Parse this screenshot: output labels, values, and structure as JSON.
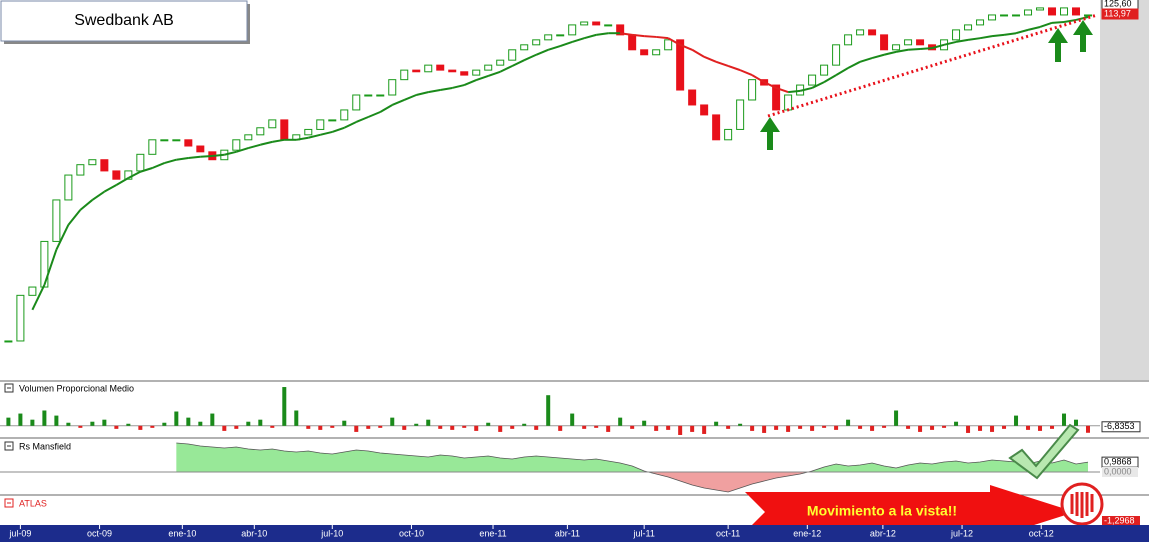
{
  "chart_data": [
    {
      "type": "candlestick",
      "title": "Swedbank AB",
      "xlim": [
        -0.7,
        91
      ],
      "ylim": [
        40,
        128
      ],
      "xticks": [
        {
          "value": 1,
          "label": "jul-09"
        },
        {
          "value": 7.6,
          "label": "oct-09"
        },
        {
          "value": 14.5,
          "label": "ene-10"
        },
        {
          "value": 20.5,
          "label": "abr-10"
        },
        {
          "value": 27,
          "label": "jul-10"
        },
        {
          "value": 33.6,
          "label": "oct-10"
        },
        {
          "value": 40.4,
          "label": "ene-11"
        },
        {
          "value": 46.6,
          "label": "abr-11"
        },
        {
          "value": 53,
          "label": "jul-11"
        },
        {
          "value": 60,
          "label": "oct-11"
        },
        {
          "value": 66.6,
          "label": "ene-12"
        },
        {
          "value": 72.9,
          "label": "abr-12"
        },
        {
          "value": 79.5,
          "label": "jul-12"
        },
        {
          "value": 86.1,
          "label": "oct-12"
        }
      ],
      "values": [
        47,
        58,
        60,
        71,
        81,
        87,
        89.5,
        90.7,
        88,
        86,
        88,
        92,
        95.5,
        95.5,
        95.5,
        94,
        92.6,
        90.7,
        93,
        95.5,
        96.7,
        98.4,
        100.3,
        95.5,
        96.7,
        98,
        100.3,
        100.3,
        102.7,
        106.3,
        106.3,
        106.3,
        110,
        112.3,
        111.9,
        113.5,
        112.3,
        111.9,
        111.1,
        112.3,
        113.5,
        114.7,
        117.2,
        118.4,
        119.6,
        120.8,
        120.8,
        123.2,
        123.9,
        123.2,
        123.2,
        120.8,
        117.2,
        116,
        117.2,
        119.6,
        107.5,
        103.9,
        101.5,
        95.5,
        98,
        105.1,
        110,
        108.7,
        102.7,
        106.3,
        108.7,
        111.1,
        113.5,
        118.4,
        120.8,
        122,
        120.8,
        117.2,
        118.4,
        119.6,
        118.4,
        117.2,
        119.6,
        122,
        123.2,
        124.4,
        125.6,
        125.6,
        125.6,
        126.8,
        127.3,
        125.6,
        127.3,
        125.6,
        125.6
      ],
      "up_color": "#1a9a1a",
      "down_color": "#e8101a",
      "ma": {
        "color": "#1a8a1a",
        "declining_color": "#e02020",
        "values": [
          null,
          null,
          54.5,
          60.5,
          69,
          75,
          78.6,
          81,
          83,
          84.6,
          86.3,
          87.8,
          88.7,
          89.9,
          90.7,
          91.1,
          91.4,
          91.6,
          91.9,
          92.6,
          93.5,
          94.3,
          95,
          95.5,
          95.5,
          96,
          96.7,
          97.4,
          98.4,
          99.8,
          101,
          102.2,
          103.9,
          105.1,
          106.3,
          107,
          107.5,
          108,
          108.7,
          109.9,
          110.9,
          111.9,
          113.3,
          114.7,
          116,
          117.2,
          118.1,
          119.1,
          120,
          120.8,
          121.2,
          121.2,
          120.8,
          120.5,
          120.3,
          120,
          118.4,
          117.2,
          115.5,
          114.3,
          113.3,
          112.3,
          111.1,
          109.4,
          108,
          107,
          107.3,
          108,
          109.4,
          111.1,
          112.8,
          114.3,
          115.2,
          116,
          116.7,
          117.2,
          117.4,
          117.6,
          118.4,
          119.1,
          119.6,
          120,
          120.5,
          120.8,
          121.2,
          122,
          122.7,
          123.7,
          123.9,
          124.4,
          125.1
        ]
      },
      "last_labels": [
        {
          "value": 125.6,
          "label": "125,60"
        },
        {
          "value": 113.97,
          "label": "113,97"
        }
      ]
    },
    {
      "type": "bar",
      "title": "Volumen Proporcional Medio",
      "ylim": [
        -10,
        40
      ],
      "values": [
        8,
        12,
        6,
        15,
        10,
        3,
        -2,
        4,
        6,
        -3,
        2,
        -4,
        -2,
        3,
        14,
        8,
        4,
        12,
        -5,
        -3,
        4,
        6,
        -2,
        38,
        15,
        -3,
        -4,
        -2,
        5,
        -6,
        -3,
        -2,
        8,
        -4,
        2,
        6,
        -3,
        -4,
        -2,
        -5,
        3,
        -6,
        -3,
        2,
        -4,
        30,
        -5,
        12,
        -3,
        -2,
        -6,
        8,
        -3,
        5,
        -5,
        -4,
        -9,
        -6,
        -8,
        4,
        -3,
        2,
        -5,
        -7,
        -4,
        -6,
        -3,
        -5,
        -2,
        -4,
        6,
        -3,
        -5,
        -2,
        15,
        -3,
        -6,
        -4,
        -2,
        4,
        -7,
        -5,
        -6,
        -3,
        10,
        -4,
        -5,
        -3,
        12,
        6,
        -6.8353
      ],
      "up_color": "#1a8a1a",
      "down_color": "#e02020",
      "last_labels": [
        {
          "value": -6.8353,
          "label": "-6,8353"
        }
      ]
    },
    {
      "type": "area",
      "title": "Rs Mansfield",
      "ylim": [
        -2.3,
        3.1
      ],
      "values": [
        null,
        null,
        null,
        null,
        null,
        null,
        null,
        null,
        null,
        null,
        null,
        null,
        null,
        null,
        2.9,
        2.8,
        2.6,
        2.5,
        2.4,
        2.5,
        2.3,
        2.2,
        2.3,
        2.1,
        2.0,
        2.1,
        1.9,
        1.8,
        2.0,
        2.2,
        2.1,
        1.9,
        1.8,
        1.7,
        1.6,
        1.5,
        1.7,
        1.6,
        1.4,
        1.5,
        1.6,
        1.4,
        1.3,
        1.5,
        1.6,
        1.5,
        1.4,
        1.3,
        1.2,
        1.3,
        1.1,
        0.9,
        0.6,
        0.1,
        -0.2,
        -0.5,
        -0.9,
        -1.3,
        -1.6,
        -1.8,
        -2.0,
        -1.6,
        -1.2,
        -0.9,
        -0.6,
        -0.4,
        -0.2,
        0.1,
        0.5,
        0.8,
        0.6,
        0.7,
        0.9,
        0.6,
        0.4,
        0.7,
        0.9,
        0.8,
        1.0,
        1.1,
        0.9,
        1.0,
        1.2,
        1.1,
        1.0,
        0.8,
        1.1,
        0.9,
        1.2,
        0.8,
        0.9868
      ],
      "pos_color": "#98e898",
      "neg_color": "#f0a0a0",
      "last_labels": [
        {
          "value": 0.9868,
          "label": "0,9868"
        },
        {
          "value": 0,
          "label": "0,0000"
        }
      ]
    },
    {
      "type": "indicator",
      "title": "ATLAS",
      "title_color": "#e02020",
      "last_labels": [
        {
          "value": -1.2968,
          "label": "-1,2968"
        }
      ]
    }
  ],
  "annotation": "Movimiento a la vista!!"
}
